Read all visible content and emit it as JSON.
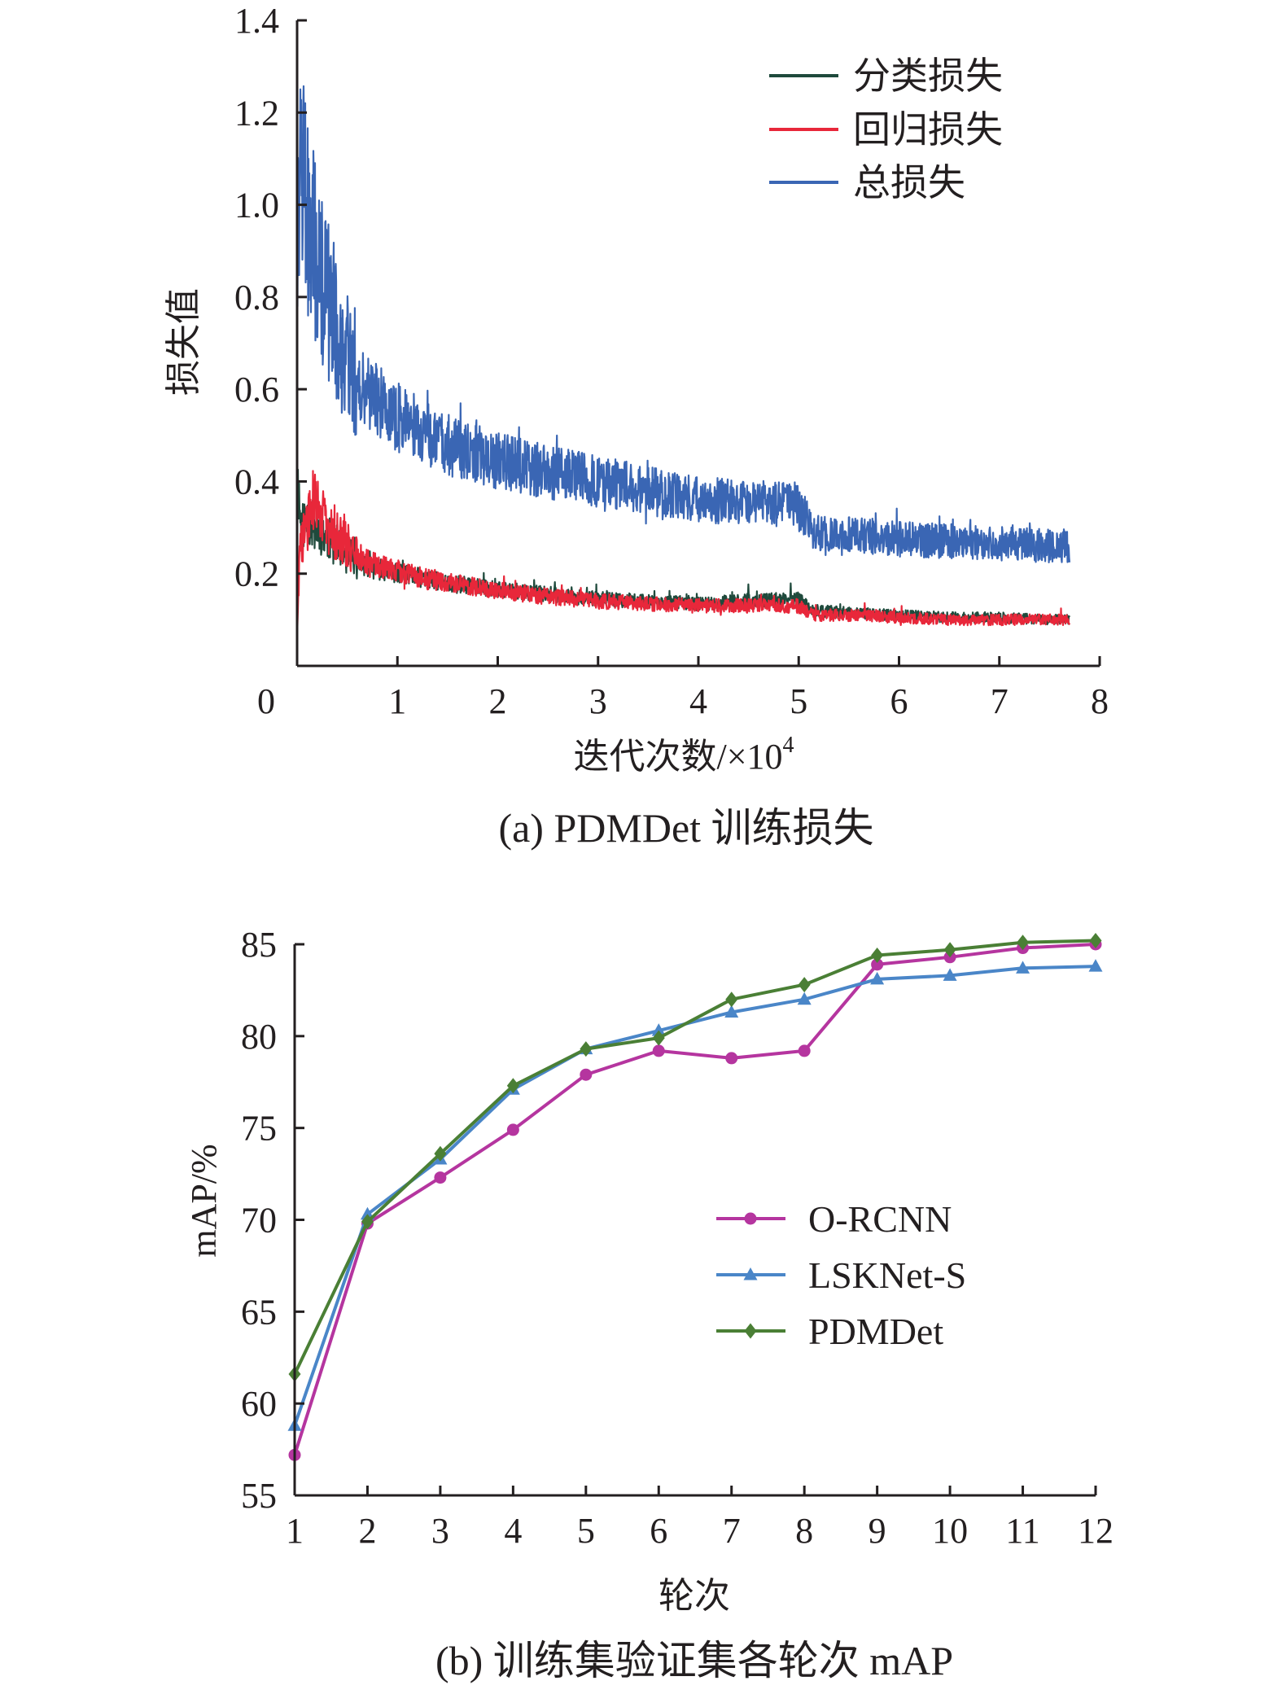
{
  "chart_data": [
    {
      "type": "line",
      "caption": "(a) PDMDet 训练损失",
      "xlabel": "迭代次数/×10",
      "xlabel_exp": "4",
      "ylabel": "损失值",
      "xlim": [
        0,
        8
      ],
      "ylim": [
        0,
        1.4
      ],
      "xticks": [
        "0",
        "1",
        "2",
        "3",
        "4",
        "5",
        "6",
        "7",
        "8"
      ],
      "yticks": [
        "0.2",
        "0.4",
        "0.6",
        "0.8",
        "1.0",
        "1.2",
        "1.4"
      ],
      "legend_position": "top-right",
      "grid": false,
      "series": [
        {
          "name": "分类损失",
          "color": "#1f4a3c",
          "x": [
            0,
            0.04,
            0.1,
            0.2,
            0.3,
            0.5,
            0.7,
            1.0,
            1.5,
            2.0,
            2.5,
            3.0,
            3.5,
            4.0,
            4.5,
            5.0,
            5.15,
            5.5,
            6.0,
            6.5,
            7.0,
            7.5,
            7.7
          ],
          "y": [
            0.42,
            0.3,
            0.32,
            0.3,
            0.28,
            0.24,
            0.215,
            0.2,
            0.18,
            0.165,
            0.155,
            0.145,
            0.14,
            0.135,
            0.14,
            0.145,
            0.12,
            0.115,
            0.11,
            0.105,
            0.105,
            0.1,
            0.1
          ]
        },
        {
          "name": "回归损失",
          "color": "#e8273a",
          "x": [
            0,
            0.03,
            0.1,
            0.15,
            0.25,
            0.3,
            0.5,
            0.7,
            1.0,
            1.5,
            2.0,
            2.5,
            3.0,
            3.5,
            4.0,
            4.5,
            5.0,
            5.15,
            5.5,
            6.0,
            6.5,
            7.0,
            7.5,
            7.7
          ],
          "y": [
            0.06,
            0.26,
            0.3,
            0.36,
            0.33,
            0.3,
            0.26,
            0.225,
            0.205,
            0.18,
            0.165,
            0.15,
            0.14,
            0.135,
            0.13,
            0.13,
            0.13,
            0.11,
            0.11,
            0.105,
            0.1,
            0.1,
            0.1,
            0.1
          ]
        },
        {
          "name": "总损失",
          "color": "#3a66b4",
          "x": [
            0,
            0.05,
            0.1,
            0.2,
            0.3,
            0.5,
            0.7,
            1.0,
            1.5,
            2.0,
            2.5,
            3.0,
            3.5,
            4.0,
            4.5,
            4.8,
            5.0,
            5.15,
            5.5,
            6.0,
            6.5,
            7.0,
            7.5,
            7.7
          ],
          "y": [
            1.0,
            1.05,
            0.98,
            0.88,
            0.8,
            0.66,
            0.6,
            0.54,
            0.48,
            0.445,
            0.42,
            0.4,
            0.38,
            0.36,
            0.355,
            0.35,
            0.35,
            0.29,
            0.285,
            0.275,
            0.27,
            0.265,
            0.26,
            0.26
          ]
        }
      ]
    },
    {
      "type": "line",
      "caption": "(b) 训练集验证集各轮次 mAP",
      "xlabel": "轮次",
      "ylabel": "mAP/%",
      "xlim": [
        1,
        12
      ],
      "ylim": [
        55,
        85
      ],
      "categories": [
        "1",
        "2",
        "3",
        "4",
        "5",
        "6",
        "7",
        "8",
        "9",
        "10",
        "11",
        "12"
      ],
      "yticks": [
        "55",
        "60",
        "65",
        "70",
        "75",
        "80",
        "85"
      ],
      "legend_position": "right",
      "grid": false,
      "series": [
        {
          "name": "O-RCNN",
          "color": "#b5359f",
          "marker": "circle",
          "values": [
            57.2,
            69.8,
            72.3,
            74.9,
            77.9,
            79.2,
            78.8,
            79.2,
            83.9,
            84.3,
            84.8,
            85.0
          ]
        },
        {
          "name": "LSKNet-S",
          "color": "#4a86c8",
          "marker": "triangle",
          "values": [
            58.8,
            70.3,
            73.3,
            77.1,
            79.3,
            80.3,
            81.3,
            82.0,
            83.1,
            83.3,
            83.7,
            83.8
          ]
        },
        {
          "name": "PDMDet",
          "color": "#4a7f35",
          "marker": "diamond",
          "values": [
            61.6,
            69.9,
            73.6,
            77.3,
            79.3,
            79.9,
            82.0,
            82.8,
            84.4,
            84.7,
            85.1,
            85.2
          ]
        }
      ]
    }
  ]
}
